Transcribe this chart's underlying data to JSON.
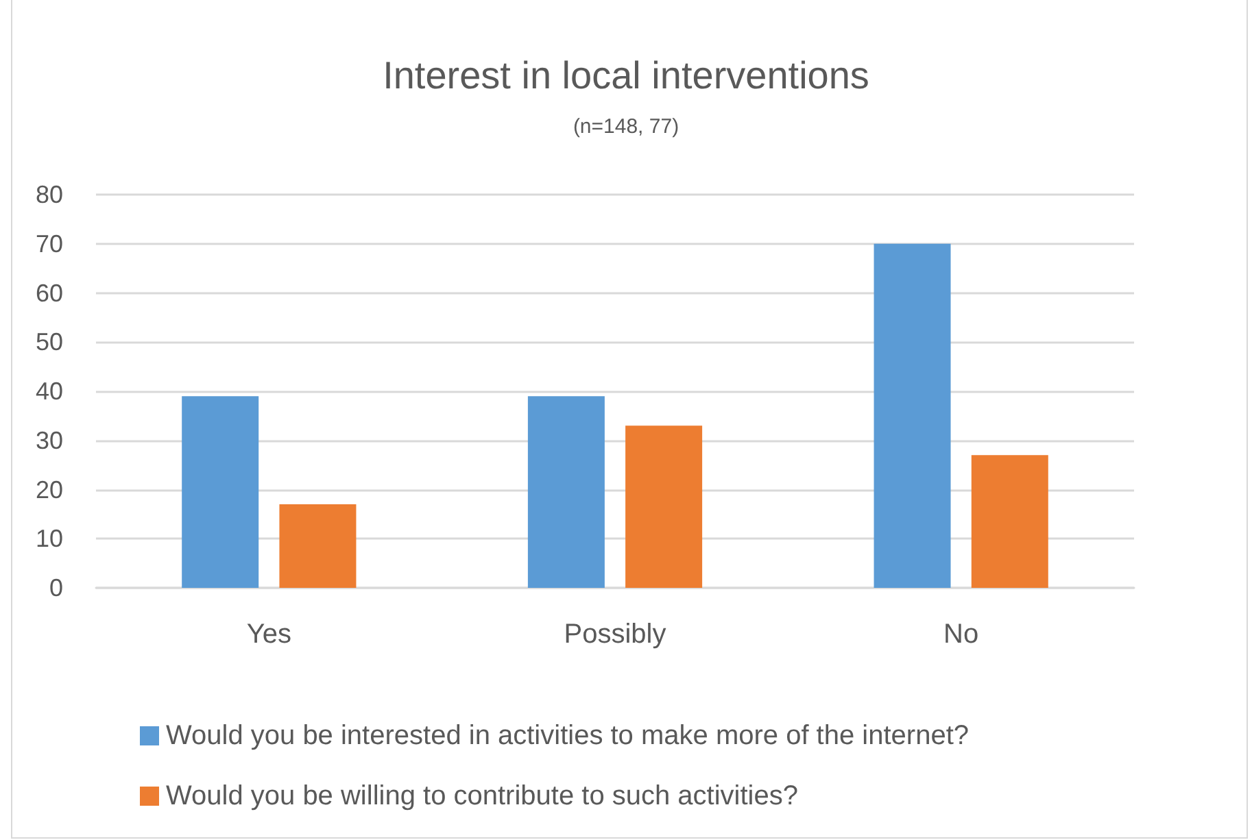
{
  "chart_data": {
    "type": "bar",
    "title": "Interest in local interventions",
    "subtitle": "(n=148, 77)",
    "categories": [
      "Yes",
      "Possibly",
      "No"
    ],
    "series": [
      {
        "name": "Would you be interested in activities to make more of the internet?",
        "color": "#5b9bd5",
        "values": [
          39,
          39,
          70
        ]
      },
      {
        "name": "Would you be willing to contribute to such activities?",
        "color": "#ed7d31",
        "values": [
          17,
          33,
          27
        ]
      }
    ],
    "ylim": [
      0,
      80
    ],
    "yticks": [
      0,
      10,
      20,
      30,
      40,
      50,
      60,
      70,
      80
    ],
    "grid": "y",
    "legend": "bottom"
  }
}
